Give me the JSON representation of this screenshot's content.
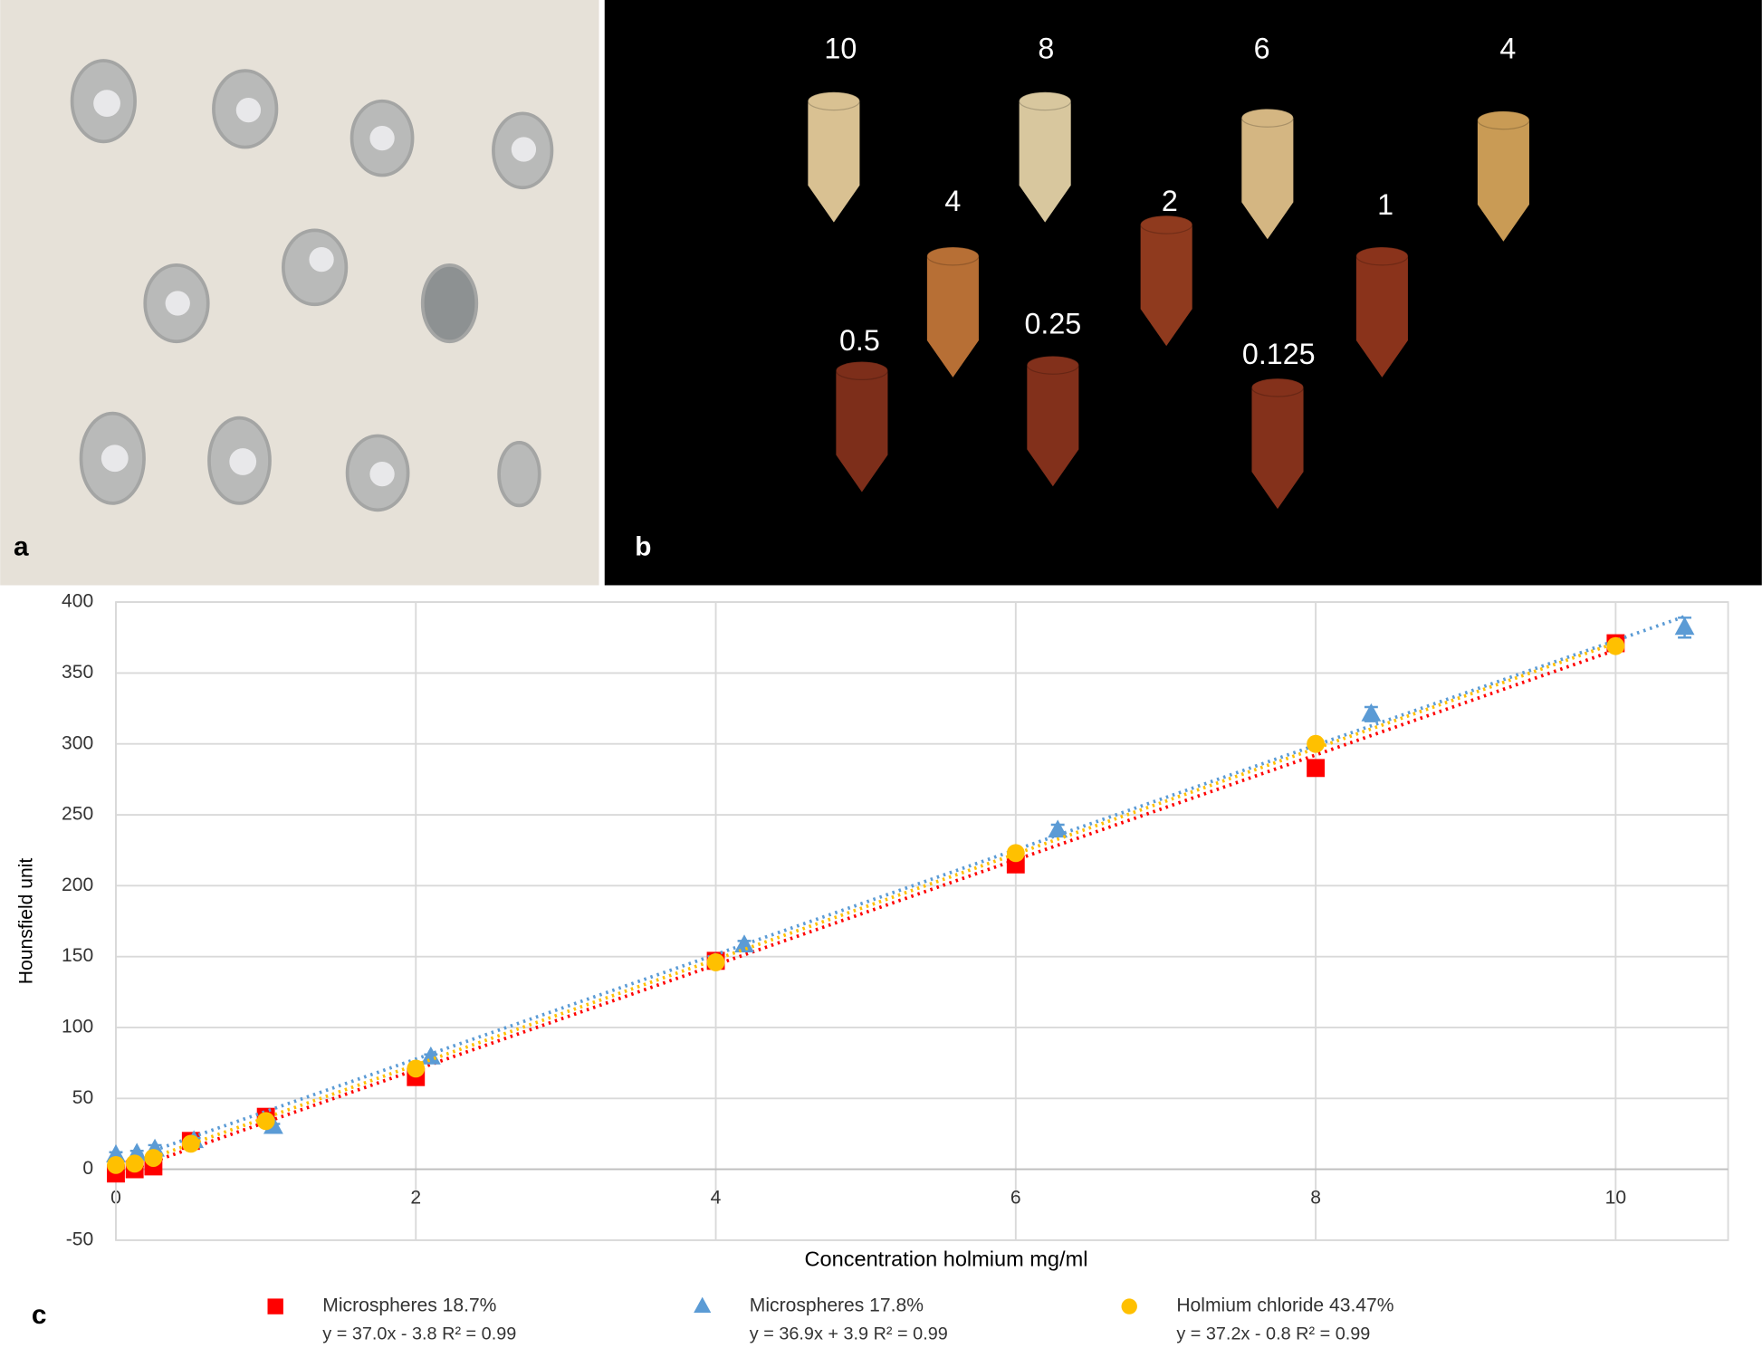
{
  "panels": {
    "a": {
      "label": "a"
    },
    "b": {
      "label": "b",
      "tube_labels": [
        "10",
        "8",
        "6",
        "4",
        "4",
        "2",
        "1",
        "0.5",
        "0.25",
        "0.125"
      ]
    },
    "c": {
      "label": "c"
    }
  },
  "chart_data": {
    "type": "scatter",
    "x_label": "Concentration holmium mg/ml",
    "y_label": "Hounsfield unit",
    "xlim": [
      0,
      10.75
    ],
    "ylim": [
      -50,
      400
    ],
    "xticks": [
      0,
      2,
      4,
      6,
      8,
      10
    ],
    "yticks": [
      -50,
      0,
      50,
      100,
      150,
      200,
      250,
      300,
      350,
      400
    ],
    "grid": true,
    "series": [
      {
        "name": "Microspheres 18.7%",
        "color": "#ff0000",
        "marker": "square",
        "equation": "y = 37.0x - 3.8 R² = 0.99",
        "trendline": {
          "slope": 37.0,
          "intercept": -3.8
        },
        "x": [
          0,
          0.125,
          0.25,
          0.5,
          1,
          2,
          4,
          6,
          8,
          10
        ],
        "values": [
          -3,
          0,
          2,
          20,
          37,
          65,
          147,
          215,
          283,
          371
        ]
      },
      {
        "name": "Microspheres 17.8%",
        "color": "#5b9bd5",
        "marker": "triangle",
        "equation": "y = 36.9x + 3.9 R² = 0.99",
        "trendline": {
          "slope": 36.9,
          "intercept": 3.9
        },
        "x": [
          0,
          0.14,
          0.26,
          0.52,
          1.05,
          2.1,
          4.19,
          6.28,
          8.37,
          10.46
        ],
        "values": [
          10,
          11,
          14,
          20,
          30,
          79,
          158,
          239,
          321,
          382
        ],
        "errors": [
          2,
          2,
          3,
          2,
          2,
          2,
          3,
          4,
          5,
          7
        ]
      },
      {
        "name": "Holmium chloride 43.47%",
        "color": "#ffc000",
        "marker": "circle",
        "equation": "y = 37.2x - 0.8 R² = 0.99",
        "trendline": {
          "slope": 37.2,
          "intercept": -0.8
        },
        "x": [
          0,
          0.125,
          0.25,
          0.5,
          1,
          2,
          4,
          6,
          8,
          10
        ],
        "values": [
          3,
          4,
          8,
          18,
          34,
          71,
          146,
          223,
          300,
          369
        ]
      }
    ]
  }
}
